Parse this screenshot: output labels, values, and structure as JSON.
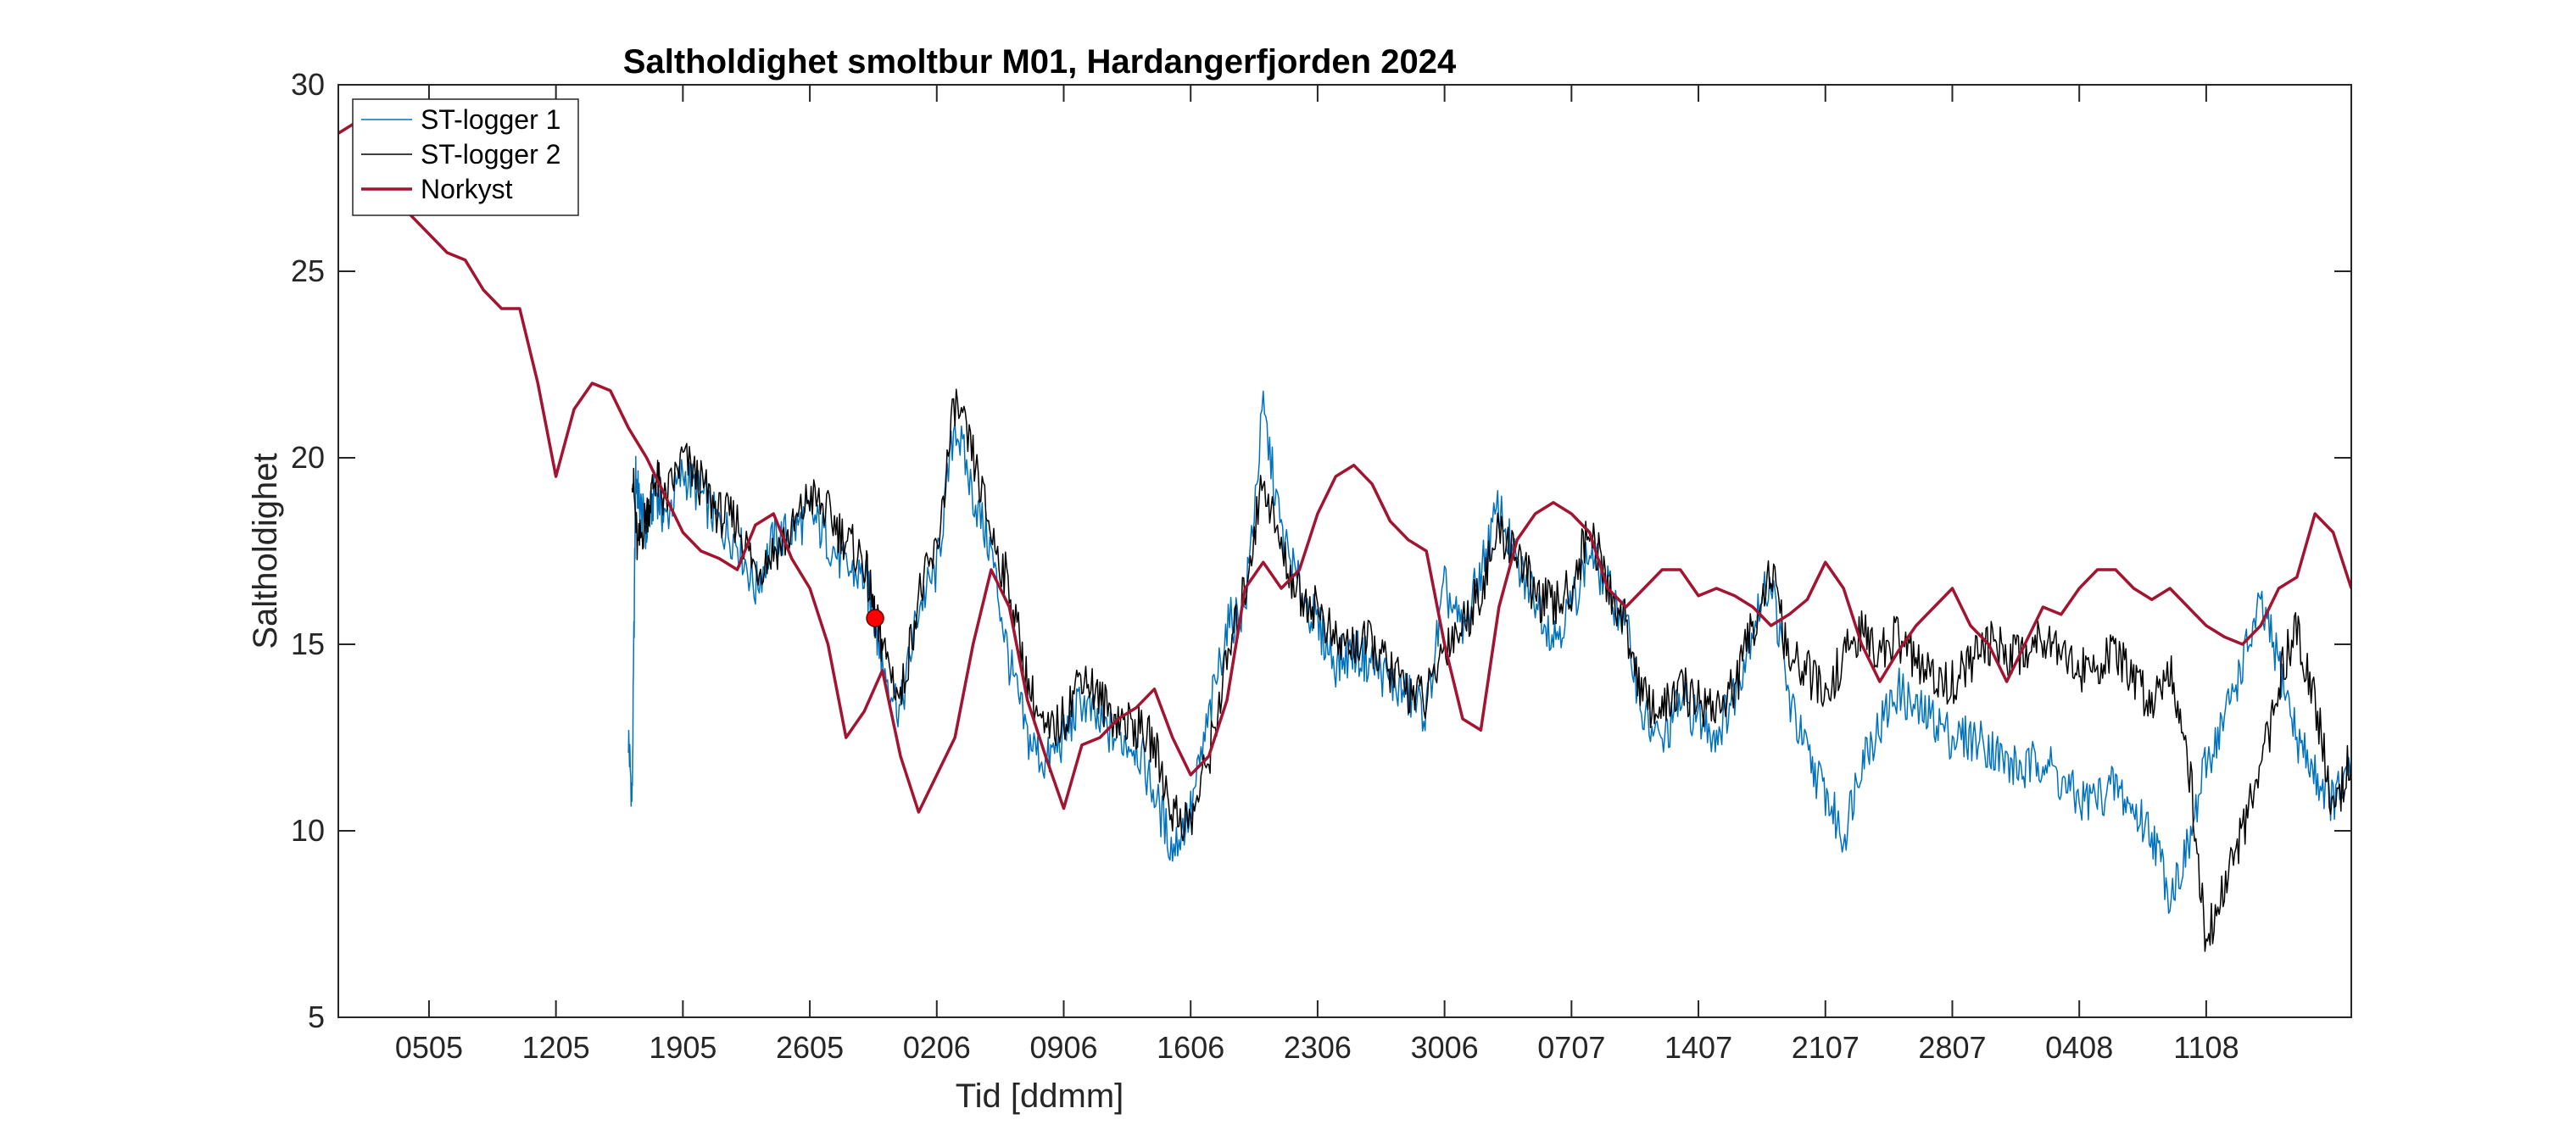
{
  "chart_data": {
    "type": "line",
    "title": "Saltholdighet smoltbur M01, Hardangerfjorden 2024",
    "xlabel": "Tid [ddmm]",
    "ylabel": "Saltholdighet",
    "ylim": [
      5,
      30
    ],
    "xlim": [
      0,
      111
    ],
    "x_unit": "days since 30 April 2024",
    "yticks": [
      5,
      10,
      15,
      20,
      25,
      30
    ],
    "xticks": [
      {
        "x": 5,
        "label": "0505"
      },
      {
        "x": 12,
        "label": "1205"
      },
      {
        "x": 19,
        "label": "1905"
      },
      {
        "x": 26,
        "label": "2605"
      },
      {
        "x": 33,
        "label": "0206"
      },
      {
        "x": 40,
        "label": "0906"
      },
      {
        "x": 47,
        "label": "1606"
      },
      {
        "x": 54,
        "label": "2306"
      },
      {
        "x": 61,
        "label": "3006"
      },
      {
        "x": 68,
        "label": "0707"
      },
      {
        "x": 75,
        "label": "1407"
      },
      {
        "x": 82,
        "label": "2107"
      },
      {
        "x": 89,
        "label": "2807"
      },
      {
        "x": 96,
        "label": "0408"
      },
      {
        "x": 103,
        "label": "1108"
      }
    ],
    "grid": false,
    "legend_position": "top-left",
    "series": [
      {
        "name": "ST-logger 1",
        "color": "#0072BD",
        "line_width": 1.5,
        "x": [
          16,
          16.2,
          16.4,
          16.6,
          17,
          17.5,
          18,
          19,
          20,
          21,
          22,
          23,
          24,
          25,
          26,
          27,
          28,
          29,
          29.6,
          30,
          31,
          32,
          33,
          34,
          35,
          36,
          37,
          38,
          39,
          40,
          41,
          42,
          43,
          44,
          45,
          46,
          47,
          48,
          49,
          50,
          51,
          52,
          53,
          54,
          55,
          56,
          57,
          58,
          59,
          60,
          61,
          62,
          63,
          64,
          65,
          66,
          67,
          68,
          69,
          70,
          71,
          72,
          73,
          74,
          75,
          76,
          77,
          78,
          79,
          80,
          81,
          82,
          83,
          84,
          85,
          86,
          87,
          88,
          89,
          90,
          91,
          92,
          93,
          94,
          95,
          96,
          97,
          98,
          99,
          100,
          101,
          102,
          103,
          104,
          105,
          106,
          107,
          108,
          109,
          110,
          111
        ],
        "y": [
          12.5,
          10.8,
          19.5,
          18.8,
          18.0,
          19.2,
          18.3,
          19.6,
          19.0,
          18.2,
          17.8,
          16.5,
          17.8,
          18.0,
          18.5,
          17.8,
          17.0,
          16.8,
          15.7,
          14.5,
          13.2,
          16.0,
          17.0,
          21.0,
          19.0,
          17.5,
          14.5,
          12.5,
          11.8,
          12.5,
          13.5,
          12.8,
          12.5,
          12.3,
          11.0,
          9.5,
          10.5,
          13.0,
          15.5,
          16.0,
          21.3,
          18.0,
          16.5,
          15.5,
          14.5,
          14.8,
          14.5,
          14.0,
          13.6,
          13.2,
          16.5,
          15.3,
          17.0,
          18.7,
          17.0,
          16.3,
          15.2,
          16.0,
          17.5,
          16.5,
          15.5,
          13.0,
          12.3,
          13.5,
          13.0,
          12.6,
          13.7,
          15.5,
          16.8,
          13.5,
          12.0,
          11.0,
          9.8,
          12.0,
          12.8,
          13.8,
          13.2,
          13.0,
          12.5,
          12.5,
          12.3,
          11.8,
          11.6,
          12.0,
          11.3,
          10.8,
          10.9,
          11.2,
          10.5,
          10.0,
          8.3,
          9.5,
          11.8,
          13.0,
          14.5,
          16.0,
          14.5,
          12.5,
          11.5,
          10.8,
          11.5
        ]
      },
      {
        "name": "ST-logger 2",
        "color": "#000000",
        "line_width": 1.5,
        "x": [
          16.2,
          16.5,
          17,
          17.5,
          18,
          19,
          20,
          21,
          22,
          23,
          24,
          25,
          26,
          27,
          28,
          29,
          29.6,
          30,
          31,
          32,
          33,
          34,
          35,
          36,
          37,
          38,
          39,
          40,
          41,
          42,
          43,
          44,
          45,
          46,
          47,
          48,
          49,
          50,
          51,
          52,
          53,
          54,
          55,
          56,
          57,
          58,
          59,
          60,
          61,
          62,
          63,
          64,
          65,
          66,
          67,
          68,
          69,
          70,
          71,
          72,
          73,
          74,
          75,
          76,
          77,
          78,
          79,
          80,
          81,
          82,
          83,
          84,
          85,
          86,
          87,
          88,
          89,
          90,
          91,
          92,
          93,
          94,
          95,
          96,
          97,
          98,
          99,
          100,
          101,
          102,
          103,
          104,
          105,
          106,
          107,
          108,
          109,
          110,
          111
        ],
        "y": [
          19.8,
          17.5,
          18.5,
          19.5,
          18.8,
          20.0,
          19.3,
          18.5,
          18.3,
          17.0,
          17.5,
          18.0,
          19.0,
          18.5,
          17.8,
          17.2,
          15.7,
          15.0,
          13.5,
          16.3,
          17.5,
          21.5,
          20.0,
          18.0,
          16.5,
          14.0,
          12.5,
          13.0,
          14.3,
          13.5,
          13.0,
          12.8,
          12.3,
          10.5,
          10.2,
          12.0,
          14.5,
          16.5,
          19.5,
          17.5,
          16.3,
          16.0,
          15.0,
          15.0,
          15.0,
          14.3,
          13.8,
          13.5,
          15.0,
          15.5,
          16.5,
          18.0,
          17.5,
          16.3,
          16.0,
          16.5,
          18.2,
          16.5,
          15.5,
          13.5,
          13.2,
          13.8,
          13.5,
          13.3,
          13.8,
          15.5,
          17.0,
          14.5,
          14.3,
          13.5,
          14.7,
          15.3,
          14.8,
          15.2,
          14.5,
          14.0,
          14.0,
          14.5,
          15.0,
          14.8,
          14.8,
          15.3,
          15.0,
          14.2,
          14.5,
          14.7,
          14.0,
          13.5,
          14.5,
          12.0,
          7.0,
          8.5,
          10.0,
          11.5,
          14.0,
          15.5,
          13.5,
          10.5,
          12.0
        ]
      },
      {
        "name": "Norkyst",
        "color": "#A2142F",
        "line_width": 3.5,
        "x": [
          0,
          1,
          2,
          3,
          4,
          5,
          6,
          7,
          8,
          9,
          10,
          11,
          12,
          13,
          14,
          15,
          16,
          17,
          18,
          19,
          20,
          21,
          22,
          23,
          24,
          25,
          26,
          27,
          28,
          29,
          30,
          31,
          32,
          33,
          34,
          35,
          36,
          37,
          38,
          39,
          40,
          41,
          42,
          43,
          44,
          45,
          46,
          47,
          48,
          49,
          50,
          51,
          52,
          53,
          54,
          55,
          56,
          57,
          58,
          59,
          60,
          61,
          62,
          63,
          64,
          65,
          66,
          67,
          68,
          69,
          70,
          71,
          72,
          73,
          74,
          75,
          76,
          77,
          78,
          79,
          80,
          81,
          82,
          83,
          84,
          85,
          86,
          87,
          88,
          89,
          90,
          91,
          92,
          93,
          94,
          95,
          96,
          97,
          98,
          99,
          100,
          101,
          102,
          103,
          104,
          105,
          106,
          107,
          108,
          109,
          110,
          111
        ],
        "y": [
          28.7,
          29.0,
          28.5,
          27.3,
          26.5,
          26.0,
          25.5,
          25.3,
          24.5,
          24.0,
          24.0,
          22.0,
          19.5,
          21.3,
          22.0,
          21.8,
          20.8,
          20.0,
          19.0,
          18.0,
          17.5,
          17.3,
          17.0,
          18.2,
          18.5,
          17.3,
          16.5,
          15.0,
          12.5,
          13.2,
          14.3,
          12.0,
          10.5,
          11.5,
          12.5,
          15.0,
          17.0,
          16.0,
          13.5,
          12.0,
          10.6,
          12.3,
          12.5,
          13.0,
          13.3,
          13.8,
          12.5,
          11.5,
          12.0,
          13.5,
          16.5,
          17.2,
          16.5,
          17.0,
          18.5,
          19.5,
          19.8,
          19.3,
          18.3,
          17.8,
          17.5,
          15.0,
          13.0,
          12.7,
          16.0,
          17.8,
          18.5,
          18.8,
          18.5,
          18.0,
          16.5,
          16.0,
          16.5,
          17.0,
          17.0,
          16.3,
          16.5,
          16.3,
          16.0,
          15.5,
          15.8,
          16.2,
          17.2,
          16.5,
          15.0,
          14.0,
          14.8,
          15.5,
          16.0,
          16.5,
          15.5,
          15.0,
          14.0,
          15.0,
          16.0,
          15.8,
          16.5,
          17.0,
          17.0,
          16.5,
          16.2,
          16.5,
          16.0,
          15.5,
          15.2,
          15.0,
          15.5,
          16.5,
          16.8,
          18.5,
          18.0,
          16.5
        ]
      }
    ],
    "marker": {
      "label": "",
      "x": 29.6,
      "y": 15.7,
      "color": "#FF0000"
    }
  }
}
